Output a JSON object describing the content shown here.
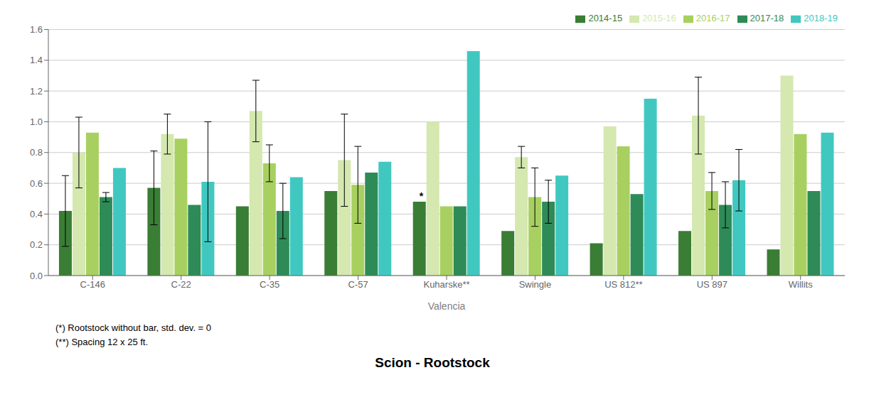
{
  "chart_data": {
    "type": "bar",
    "title": "Scion - Rootstock",
    "xlabel": "Valencia",
    "categories": [
      "C-146",
      "C-22",
      "C-35",
      "C-57",
      "Kuharske**",
      "Swingle",
      "US 812**",
      "US 897",
      "Willits"
    ],
    "series": [
      {
        "name": "2014-15",
        "color": "#3a7d35",
        "values": [
          0.42,
          0.57,
          0.45,
          0.55,
          0.48,
          0.29,
          0.21,
          0.29,
          0.17
        ],
        "errors": [
          0.23,
          0.24,
          0.0,
          0.0,
          0.0,
          0.0,
          0.0,
          0.0,
          0.0
        ]
      },
      {
        "name": "2015-16",
        "color": "#d4e8b0",
        "values": [
          0.8,
          0.92,
          1.07,
          0.75,
          1.0,
          0.77,
          0.97,
          1.04,
          1.3
        ],
        "errors": [
          0.23,
          0.13,
          0.2,
          0.3,
          0.0,
          0.07,
          0.0,
          0.25,
          0.0
        ]
      },
      {
        "name": "2016-17",
        "color": "#a8d060",
        "values": [
          0.93,
          0.89,
          0.73,
          0.59,
          0.45,
          0.51,
          0.84,
          0.55,
          0.92
        ],
        "errors": [
          0.0,
          0.0,
          0.12,
          0.25,
          0.0,
          0.19,
          0.0,
          0.12,
          0.0
        ]
      },
      {
        "name": "2017-18",
        "color": "#2e8b57",
        "values": [
          0.51,
          0.46,
          0.42,
          0.67,
          0.45,
          0.48,
          0.53,
          0.46,
          0.55
        ],
        "errors": [
          0.03,
          0.0,
          0.18,
          0.0,
          0.0,
          0.14,
          0.0,
          0.15,
          0.0
        ]
      },
      {
        "name": "2018-19",
        "color": "#40c8c0",
        "values": [
          0.7,
          0.61,
          0.64,
          0.74,
          1.46,
          0.65,
          1.15,
          0.62,
          0.93
        ],
        "errors": [
          0.0,
          0.39,
          0.0,
          0.0,
          0.0,
          0.0,
          0.0,
          0.2,
          0.0
        ]
      }
    ],
    "ylim": [
      0,
      1.6
    ],
    "yticks": [
      {
        "value": 0,
        "label": "0.0"
      },
      0.2,
      0.4,
      0.6,
      0.8,
      {
        "value": 1,
        "label": "1.0"
      },
      1.2,
      1.4,
      1.6
    ],
    "grid": true,
    "legend": "upper right",
    "annotations": [
      {
        "text": "*",
        "category": "Kuharske**",
        "series": "2014-15"
      }
    ],
    "footnotes": [
      "(*) Rootstock without bar, std. dev. = 0",
      "(**) Spacing 12 x 25 ft."
    ]
  }
}
